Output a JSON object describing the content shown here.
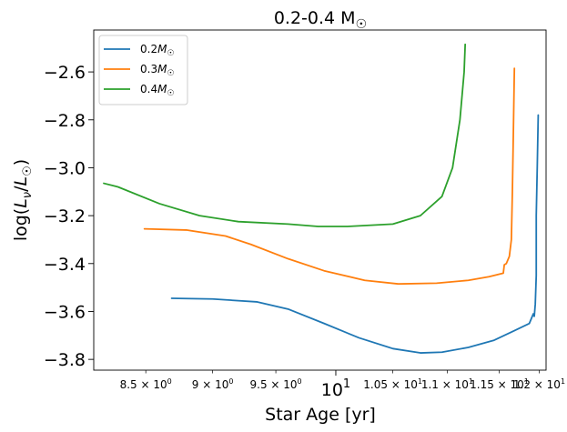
{
  "chart_data": {
    "type": "line",
    "title": "0.2-0.4 M",
    "title_symbol": "☉",
    "xlabel": "Star Age [yr]",
    "ylabel": {
      "main": "log(",
      "l1": "L",
      "nu": "ν",
      "slash": "/",
      "l2": "L",
      "sun": "☉",
      "close": ")"
    },
    "x_scale": "log",
    "xlim": [
      8.13,
      11.97
    ],
    "ylim": [
      -3.845,
      -2.425
    ],
    "grid": false,
    "legend_position": "top-left",
    "x_ticks": [
      {
        "value": 8.5,
        "base": "8.5 × 10",
        "exp": "0",
        "major": false
      },
      {
        "value": 9.0,
        "base": "9 × 10",
        "exp": "0",
        "major": false
      },
      {
        "value": 9.5,
        "base": "9.5 × 10",
        "exp": "0",
        "major": false
      },
      {
        "value": 10.0,
        "base": "10",
        "exp": "1",
        "major": true
      },
      {
        "value": 10.5,
        "base": "1.05 × 10",
        "exp": "1",
        "major": false
      },
      {
        "value": 11.0,
        "base": "1.1 × 10",
        "exp": "1",
        "major": false
      },
      {
        "value": 11.5,
        "base": "1.15 × 10",
        "exp": "1",
        "major": false
      },
      {
        "value": 11.9,
        "base": "1.2 × 10",
        "exp": "1",
        "major": false
      }
    ],
    "y_ticks": [
      {
        "value": -3.8,
        "label": "−3.8"
      },
      {
        "value": -3.6,
        "label": "−3.6"
      },
      {
        "value": -3.4,
        "label": "−3.4"
      },
      {
        "value": -3.2,
        "label": "−3.2"
      },
      {
        "value": -3.0,
        "label": "−3.0"
      },
      {
        "value": -2.8,
        "label": "−2.8"
      },
      {
        "value": -2.6,
        "label": "−2.6"
      }
    ],
    "series": [
      {
        "name": "0.2M",
        "legend_base": "0.2",
        "legend_m": "M",
        "legend_sub": "☉",
        "color": "#1f77b4",
        "x": [
          8.69,
          9.0,
          9.35,
          9.6,
          9.9,
          10.2,
          10.5,
          10.75,
          10.95,
          11.2,
          11.45,
          11.65,
          11.8,
          11.84,
          11.85,
          11.86,
          11.87,
          11.87,
          11.88,
          11.89
        ],
        "y": [
          -3.545,
          -3.548,
          -3.56,
          -3.59,
          -3.65,
          -3.71,
          -3.755,
          -3.773,
          -3.77,
          -3.75,
          -3.72,
          -3.68,
          -3.65,
          -3.61,
          -3.62,
          -3.57,
          -3.45,
          -3.2,
          -3.0,
          -2.78
        ]
      },
      {
        "name": "0.3M",
        "legend_base": "0.3",
        "legend_m": "M",
        "legend_sub": "☉",
        "color": "#ff7f0e",
        "x": [
          8.49,
          8.8,
          9.1,
          9.3,
          9.6,
          9.9,
          10.25,
          10.55,
          10.9,
          11.2,
          11.4,
          11.54,
          11.55,
          11.57,
          11.6,
          11.62,
          11.63,
          11.64,
          11.65
        ],
        "y": [
          -3.255,
          -3.26,
          -3.285,
          -3.32,
          -3.38,
          -3.43,
          -3.47,
          -3.485,
          -3.482,
          -3.47,
          -3.455,
          -3.44,
          -3.405,
          -3.4,
          -3.37,
          -3.3,
          -3.1,
          -2.85,
          -2.585
        ]
      },
      {
        "name": "0.4M",
        "legend_base": "0.4",
        "legend_m": "M",
        "legend_sub": "☉",
        "color": "#2ca02c",
        "x": [
          8.2,
          8.3,
          8.6,
          8.9,
          9.2,
          9.6,
          9.85,
          10.1,
          10.5,
          10.75,
          10.95,
          11.05,
          11.12,
          11.16,
          11.17
        ],
        "y": [
          -3.065,
          -3.08,
          -3.15,
          -3.2,
          -3.225,
          -3.235,
          -3.245,
          -3.245,
          -3.235,
          -3.2,
          -3.12,
          -3.0,
          -2.8,
          -2.6,
          -2.485
        ]
      }
    ]
  }
}
